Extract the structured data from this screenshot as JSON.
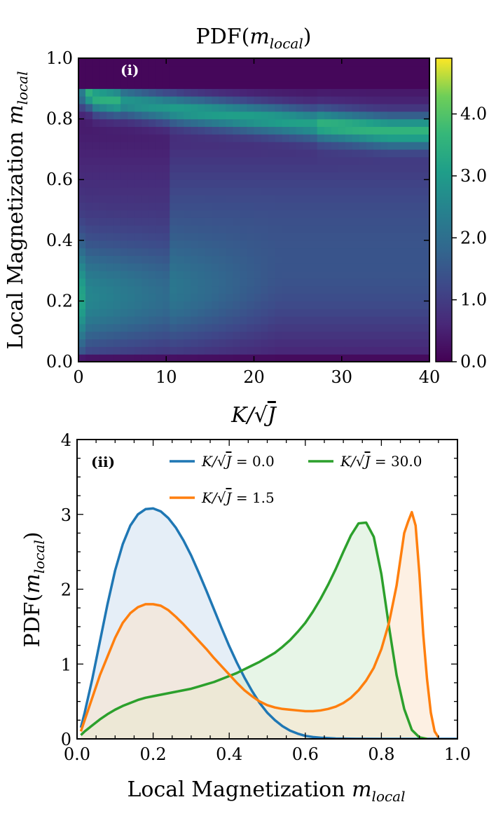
{
  "chart_data": [
    {
      "type": "heatmap",
      "panel_label": "(i)",
      "title_prefix": "PDF(",
      "title_var": "m",
      "title_sub": "local",
      "title_suffix": ")",
      "xlabel_prefix": "K/",
      "xlabel_var": "J",
      "ylabel_prefix": "Local Magnetization ",
      "ylabel_var": "m",
      "ylabel_sub": "local",
      "xlim": [
        0,
        40
      ],
      "ylim": [
        0,
        1
      ],
      "xticks": [
        "0",
        "10",
        "20",
        "30",
        "40"
      ],
      "yticks": [
        "0.0",
        "0.2",
        "0.4",
        "0.6",
        "0.8",
        "1.0"
      ],
      "colorbar": {
        "range": [
          0,
          4.9
        ],
        "ticks": [
          "0.0",
          "1.0",
          "2.0",
          "3.0",
          "4.0"
        ],
        "tick_values": [
          0,
          1,
          2,
          3,
          4
        ],
        "colormap": "viridis"
      }
    },
    {
      "type": "area",
      "panel_label": "(ii)",
      "xlabel_prefix": "Local Magnetization ",
      "xlabel_var": "m",
      "xlabel_sub": "local",
      "ylabel_prefix": "PDF(",
      "ylabel_var": "m",
      "ylabel_sub": "local",
      "ylabel_suffix": ")",
      "xlim": [
        0,
        1
      ],
      "ylim": [
        0,
        4
      ],
      "xticks": [
        "0.0",
        "0.2",
        "0.4",
        "0.6",
        "0.8",
        "1.0"
      ],
      "yticks": [
        "0",
        "1",
        "2",
        "3",
        "4"
      ],
      "legend_position": "top",
      "series": [
        {
          "name": "K/√J = 0.0",
          "legend_prefix": "K/",
          "legend_var": "J",
          "legend_value": " = 0.0",
          "color": "#1f77b4",
          "fill": "#cfe0f1",
          "x": [
            0.01,
            0.02,
            0.04,
            0.06,
            0.08,
            0.1,
            0.12,
            0.14,
            0.16,
            0.18,
            0.2,
            0.22,
            0.24,
            0.26,
            0.28,
            0.3,
            0.32,
            0.34,
            0.36,
            0.38,
            0.4,
            0.42,
            0.44,
            0.46,
            0.48,
            0.5,
            0.52,
            0.54,
            0.56,
            0.58,
            0.6,
            0.62,
            0.64,
            0.66,
            0.68,
            0.7,
            0.75,
            0.8,
            0.85,
            0.9,
            0.95,
            1.0
          ],
          "y": [
            0.15,
            0.35,
            0.8,
            1.3,
            1.8,
            2.25,
            2.6,
            2.85,
            3.0,
            3.07,
            3.08,
            3.04,
            2.95,
            2.82,
            2.65,
            2.45,
            2.22,
            1.98,
            1.73,
            1.48,
            1.24,
            1.02,
            0.82,
            0.64,
            0.48,
            0.35,
            0.25,
            0.17,
            0.11,
            0.07,
            0.04,
            0.025,
            0.015,
            0.01,
            0.005,
            0.003,
            0.001,
            0,
            0,
            0,
            0,
            0
          ]
        },
        {
          "name": "K/√J = 1.5",
          "legend_prefix": "K/",
          "legend_var": "J",
          "legend_value": " = 1.5",
          "color": "#ff7f0e",
          "fill": "#fce3cc",
          "x": [
            0.01,
            0.02,
            0.04,
            0.06,
            0.08,
            0.1,
            0.12,
            0.14,
            0.16,
            0.18,
            0.2,
            0.22,
            0.24,
            0.26,
            0.28,
            0.3,
            0.32,
            0.34,
            0.36,
            0.38,
            0.4,
            0.42,
            0.44,
            0.46,
            0.48,
            0.5,
            0.52,
            0.54,
            0.56,
            0.58,
            0.6,
            0.62,
            0.64,
            0.66,
            0.68,
            0.7,
            0.72,
            0.74,
            0.76,
            0.78,
            0.8,
            0.82,
            0.84,
            0.86,
            0.87,
            0.88,
            0.89,
            0.9,
            0.91,
            0.92,
            0.93,
            0.94,
            0.95
          ],
          "y": [
            0.1,
            0.25,
            0.55,
            0.85,
            1.1,
            1.35,
            1.55,
            1.68,
            1.76,
            1.8,
            1.8,
            1.78,
            1.72,
            1.63,
            1.53,
            1.42,
            1.31,
            1.2,
            1.08,
            0.97,
            0.86,
            0.75,
            0.65,
            0.57,
            0.5,
            0.45,
            0.42,
            0.4,
            0.39,
            0.38,
            0.37,
            0.37,
            0.38,
            0.4,
            0.43,
            0.48,
            0.55,
            0.65,
            0.78,
            0.95,
            1.2,
            1.55,
            2.05,
            2.75,
            2.9,
            3.03,
            2.85,
            2.2,
            1.4,
            0.8,
            0.35,
            0.1,
            0.02
          ]
        },
        {
          "name": "K/√J = 30.0",
          "legend_prefix": "K/",
          "legend_var": "J",
          "legend_value": " = 30.0",
          "color": "#2ca02c",
          "fill": "#d3edd3",
          "x": [
            0.01,
            0.02,
            0.04,
            0.06,
            0.08,
            0.1,
            0.12,
            0.14,
            0.16,
            0.18,
            0.2,
            0.22,
            0.24,
            0.26,
            0.28,
            0.3,
            0.32,
            0.34,
            0.36,
            0.38,
            0.4,
            0.42,
            0.44,
            0.46,
            0.48,
            0.5,
            0.52,
            0.54,
            0.56,
            0.58,
            0.6,
            0.62,
            0.64,
            0.66,
            0.68,
            0.7,
            0.72,
            0.74,
            0.76,
            0.78,
            0.8,
            0.82,
            0.84,
            0.86,
            0.88,
            0.9,
            0.92
          ],
          "y": [
            0.05,
            0.1,
            0.18,
            0.26,
            0.33,
            0.39,
            0.44,
            0.48,
            0.52,
            0.55,
            0.57,
            0.59,
            0.61,
            0.63,
            0.65,
            0.67,
            0.7,
            0.73,
            0.76,
            0.8,
            0.84,
            0.88,
            0.93,
            0.98,
            1.03,
            1.09,
            1.15,
            1.23,
            1.32,
            1.43,
            1.55,
            1.7,
            1.87,
            2.06,
            2.27,
            2.5,
            2.72,
            2.88,
            2.89,
            2.7,
            2.2,
            1.5,
            0.85,
            0.4,
            0.12,
            0.02,
            0
          ]
        }
      ]
    }
  ]
}
